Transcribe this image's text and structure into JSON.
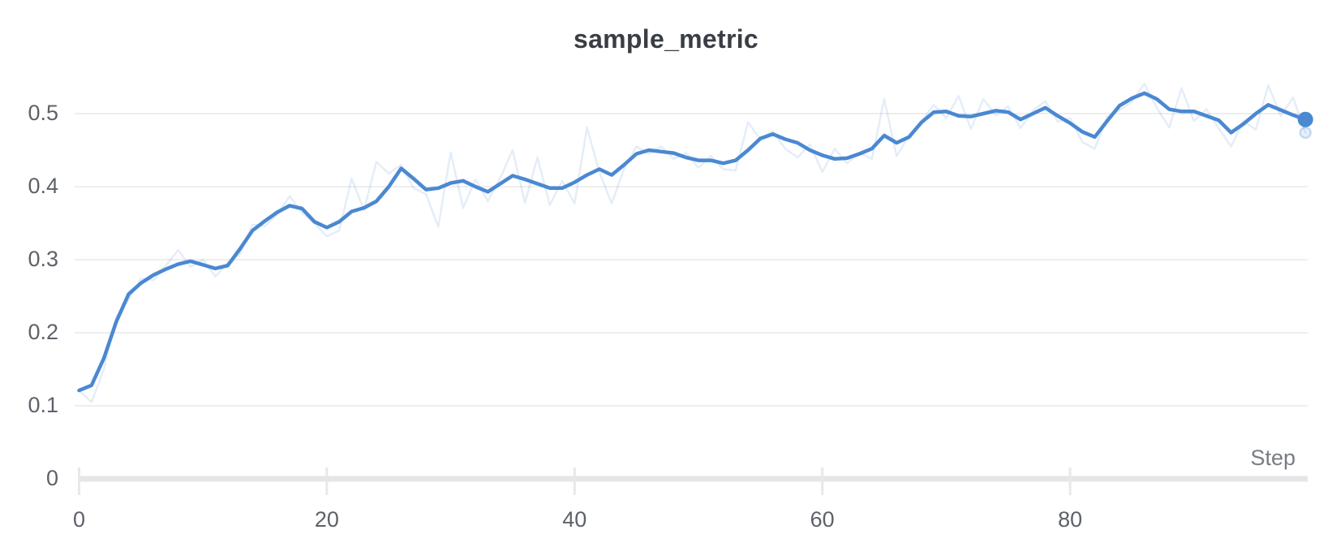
{
  "header": {
    "title": "sample_metric"
  },
  "axes": {
    "x_label": "Step",
    "x_ticks": [
      {
        "label": "0",
        "value": 0
      },
      {
        "label": "20",
        "value": 20
      },
      {
        "label": "40",
        "value": 40
      },
      {
        "label": "60",
        "value": 60
      },
      {
        "label": "80",
        "value": 80
      }
    ],
    "y_ticks": [
      {
        "label": "0",
        "value": 0
      },
      {
        "label": "0.1",
        "value": 0.1
      },
      {
        "label": "0.2",
        "value": 0.2
      },
      {
        "label": "0.3",
        "value": 0.3
      },
      {
        "label": "0.4",
        "value": 0.4
      },
      {
        "label": "0.5",
        "value": 0.5
      }
    ]
  },
  "chart_data": {
    "type": "line",
    "title": "sample_metric",
    "xlabel": "Step",
    "ylabel": "",
    "x_start": 0,
    "x_increment": 1,
    "n_points": 100,
    "x_range": [
      0,
      99
    ],
    "ylim": [
      0,
      0.56
    ],
    "x_tick_values": [
      0,
      20,
      40,
      60,
      80
    ],
    "y_tick_values": [
      0,
      0.1,
      0.2,
      0.3,
      0.4,
      0.5
    ],
    "grid": "horizontal-only",
    "legend": "none",
    "series": [
      {
        "name": "sample_metric (raw)",
        "color": "#4a88d2",
        "opacity": 0.15,
        "stroke_width": 2.5,
        "values": [
          0.121,
          0.105,
          0.15,
          0.222,
          0.246,
          0.274,
          0.272,
          0.292,
          0.313,
          0.29,
          0.3,
          0.277,
          0.296,
          0.308,
          0.348,
          0.346,
          0.362,
          0.387,
          0.364,
          0.35,
          0.332,
          0.34,
          0.411,
          0.368,
          0.434,
          0.418,
          0.43,
          0.398,
          0.39,
          0.345,
          0.447,
          0.371,
          0.41,
          0.38,
          0.412,
          0.45,
          0.378,
          0.44,
          0.375,
          0.408,
          0.377,
          0.481,
          0.42,
          0.377,
          0.425,
          0.455,
          0.445,
          0.455,
          0.438,
          0.446,
          0.426,
          0.442,
          0.424,
          0.422,
          0.488,
          0.465,
          0.476,
          0.452,
          0.44,
          0.458,
          0.42,
          0.452,
          0.432,
          0.446,
          0.438,
          0.52,
          0.442,
          0.47,
          0.49,
          0.512,
          0.494,
          0.524,
          0.479,
          0.52,
          0.498,
          0.51,
          0.48,
          0.504,
          0.517,
          0.489,
          0.494,
          0.461,
          0.452,
          0.496,
          0.505,
          0.516,
          0.541,
          0.508,
          0.481,
          0.535,
          0.49,
          0.506,
          0.48,
          0.455,
          0.49,
          0.478,
          0.539,
          0.497,
          0.522,
          0.474
        ]
      },
      {
        "name": "sample_metric (smoothed)",
        "color": "#4a88d2",
        "opacity": 1,
        "stroke_width": 4.5,
        "values": [
          0.121,
          0.128,
          0.165,
          0.215,
          0.253,
          0.268,
          0.279,
          0.287,
          0.294,
          0.298,
          0.293,
          0.288,
          0.292,
          0.315,
          0.34,
          0.353,
          0.365,
          0.374,
          0.37,
          0.352,
          0.344,
          0.352,
          0.366,
          0.371,
          0.38,
          0.4,
          0.425,
          0.411,
          0.396,
          0.398,
          0.405,
          0.408,
          0.4,
          0.393,
          0.404,
          0.415,
          0.41,
          0.404,
          0.398,
          0.398,
          0.406,
          0.416,
          0.424,
          0.416,
          0.43,
          0.445,
          0.45,
          0.448,
          0.446,
          0.44,
          0.436,
          0.436,
          0.432,
          0.436,
          0.45,
          0.466,
          0.472,
          0.465,
          0.46,
          0.45,
          0.443,
          0.438,
          0.439,
          0.445,
          0.452,
          0.47,
          0.46,
          0.468,
          0.488,
          0.502,
          0.503,
          0.497,
          0.496,
          0.5,
          0.504,
          0.502,
          0.492,
          0.5,
          0.508,
          0.497,
          0.487,
          0.475,
          0.468,
          0.49,
          0.511,
          0.521,
          0.528,
          0.52,
          0.506,
          0.503,
          0.503,
          0.497,
          0.491,
          0.474,
          0.486,
          0.5,
          0.512,
          0.505,
          0.498,
          0.492
        ]
      }
    ],
    "end_markers": {
      "smoothed": {
        "step": 99,
        "value": 0.492
      },
      "raw": {
        "step": 99,
        "value": 0.474
      }
    }
  },
  "colors": {
    "line_blue": "#4a88d2",
    "raw_line": "rgba(74,136,210,0.15)",
    "gridline": "#e8e9eb",
    "axis_bar": "#e5e6e8",
    "tick_mark": "#e7e8ea",
    "title_text": "#393e44",
    "tick_text": "#5d6269",
    "step_text": "#787d84",
    "background": "#ffffff"
  }
}
